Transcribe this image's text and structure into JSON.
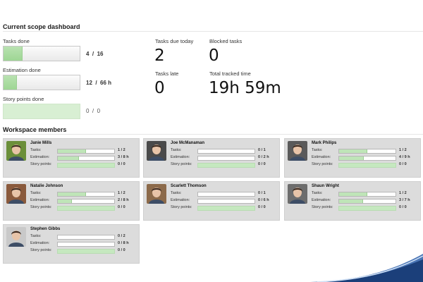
{
  "dashboard": {
    "title": "Current scope dashboard",
    "metrics": [
      {
        "label": "Tasks done",
        "value": "4  /  16",
        "progress": 0.25
      },
      {
        "label": "Estimation done",
        "value": "12  /  66 h",
        "progress": 0.18
      },
      {
        "label": "Story points done",
        "value": "0  /  0",
        "progress": 0
      }
    ],
    "stats": [
      {
        "label": "Tasks due today",
        "value": "2"
      },
      {
        "label": "Blocked tasks",
        "value": "0"
      },
      {
        "label": "Tasks late",
        "value": "0"
      },
      {
        "label": "Total tracked time",
        "value": "19h 59m"
      }
    ]
  },
  "workspace": {
    "title": "Workspace members",
    "row_labels": {
      "tasks": "Tasks:",
      "estimation": "Estimation:",
      "story_points": "Story points:"
    },
    "members": [
      {
        "name": "Janie Mills",
        "tasks": "1 / 2",
        "tasks_progress": 0.5,
        "estimation": "3 / 8 h",
        "estimation_progress": 0.375,
        "story_points": "0 / 0",
        "story_points_progress": 0
      },
      {
        "name": "Joe McManaman",
        "tasks": "0 / 1",
        "tasks_progress": 0,
        "estimation": "0 / 2 h",
        "estimation_progress": 0,
        "story_points": "0 / 0",
        "story_points_progress": 0
      },
      {
        "name": "Mark Philips",
        "tasks": "1 / 2",
        "tasks_progress": 0.5,
        "estimation": "4 / 9 h",
        "estimation_progress": 0.44,
        "story_points": "0 / 0",
        "story_points_progress": 0
      },
      {
        "name": "Natalie Johnson",
        "tasks": "1 / 2",
        "tasks_progress": 0.5,
        "estimation": "2 / 8 h",
        "estimation_progress": 0.25,
        "story_points": "0 / 0",
        "story_points_progress": 0
      },
      {
        "name": "Scarlett Thomson",
        "tasks": "0 / 1",
        "tasks_progress": 0,
        "estimation": "0 / 6 h",
        "estimation_progress": 0,
        "story_points": "0 / 0",
        "story_points_progress": 0
      },
      {
        "name": "Shaun Wright",
        "tasks": "1 / 2",
        "tasks_progress": 0.5,
        "estimation": "3 / 7 h",
        "estimation_progress": 0.43,
        "story_points": "0 / 0",
        "story_points_progress": 0
      },
      {
        "name": "Stephen Gibbs",
        "tasks": "0 / 2",
        "tasks_progress": 0,
        "estimation": "0 / 8 h",
        "estimation_progress": 0,
        "story_points": "0 / 0",
        "story_points_progress": 0
      }
    ]
  },
  "colors": {
    "progress_fill": "#a9dba0",
    "card_bg": "#dcdcdc",
    "accent_swoosh": "#1e5aa8"
  },
  "icons": {
    "avatar": "member-photo"
  }
}
